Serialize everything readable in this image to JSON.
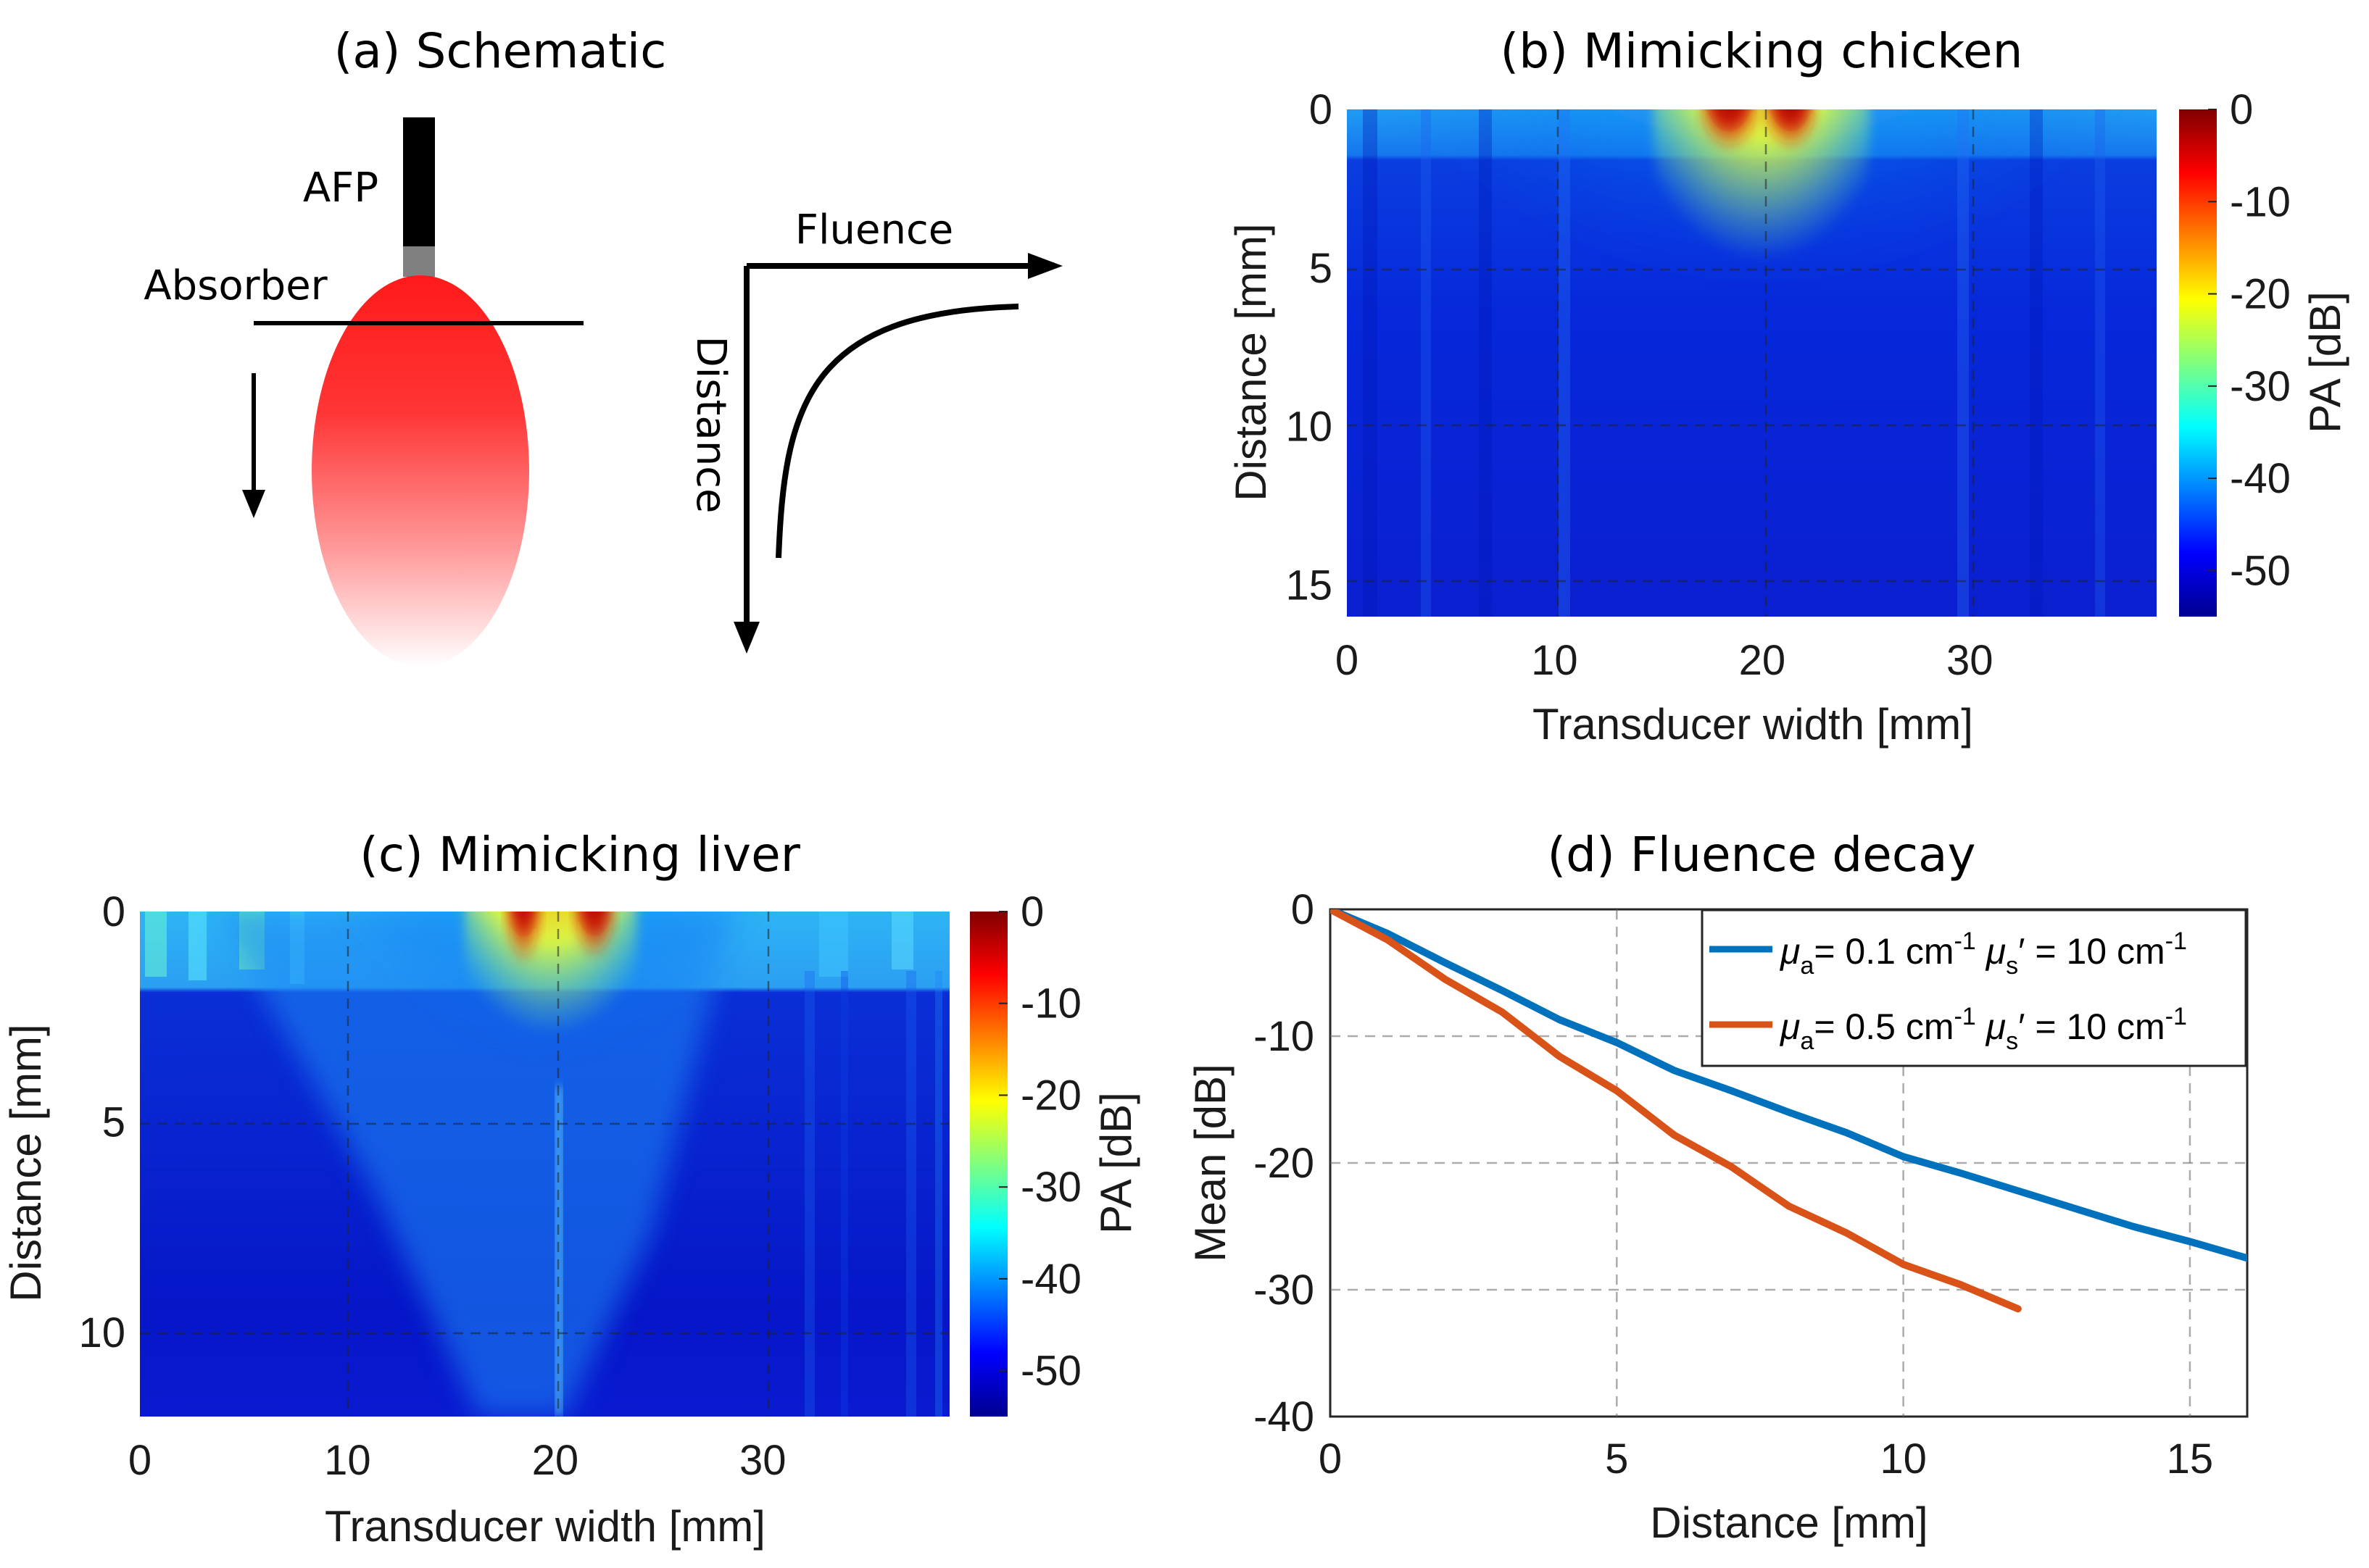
{
  "panels": {
    "a": {
      "title": "(a) Schematic",
      "afp": "AFP",
      "absorber": "Absorber",
      "fluence": "Fluence",
      "distance": "Distance"
    },
    "b": {
      "title": "(b) Mimicking chicken"
    },
    "c": {
      "title": "(c) Mimicking liver"
    },
    "d": {
      "title": "(d) Fluence decay"
    }
  },
  "colors": {
    "series1": "#0072BD",
    "series2": "#D95319",
    "absorber_red": "#ff2020",
    "black": "#000000"
  },
  "chart_data": [
    {
      "id": "b",
      "type": "heatmap",
      "title": "(b) Mimicking chicken",
      "xlabel": "Transducer width [mm]",
      "ylabel": "Distance [mm]",
      "xlim": [
        0,
        39
      ],
      "ylim": [
        0,
        16
      ],
      "xticks": [
        0,
        10,
        20,
        30
      ],
      "yticks": [
        0,
        5,
        10,
        15
      ],
      "colorbar": {
        "label": "PA [dB]",
        "min": -55,
        "max": 0,
        "ticks": [
          0,
          -10,
          -20,
          -30,
          -40,
          -50
        ]
      },
      "hotspot": {
        "x_mm": 19.5,
        "depth_mm": 0.8,
        "peak_db": 0
      }
    },
    {
      "id": "c",
      "type": "heatmap",
      "title": "(c) Mimicking liver",
      "xlabel": "Transducer width [mm]",
      "ylabel": "Distance [mm]",
      "xlim": [
        0,
        39
      ],
      "ylim": [
        0,
        12
      ],
      "xticks": [
        0,
        10,
        20,
        30
      ],
      "yticks": [
        0,
        5,
        10
      ],
      "colorbar": {
        "label": "PA [dB]",
        "min": -55,
        "max": 0,
        "ticks": [
          0,
          -10,
          -20,
          -30,
          -40,
          -50
        ]
      },
      "hotspot": {
        "x_mm": 20,
        "depth_mm": 0.8,
        "peak_db": 0
      }
    },
    {
      "id": "d",
      "type": "line",
      "title": "(d) Fluence decay",
      "xlabel": "Distance [mm]",
      "ylabel": "Mean [dB]",
      "xlim": [
        0,
        16
      ],
      "ylim": [
        -40,
        0
      ],
      "xticks": [
        0,
        5,
        10,
        15
      ],
      "yticks": [
        0,
        -10,
        -20,
        -30,
        -40
      ],
      "series": [
        {
          "name": "μa = 0.1 cm-1 μs' = 10 cm-1",
          "label_mu_a": "= 0.1 cm",
          "label_mu_s": "= 10 cm",
          "color": "#0072BD",
          "x": [
            0,
            1,
            2,
            3,
            4,
            5,
            6,
            7,
            8,
            9,
            10,
            11,
            12,
            13,
            14,
            15,
            16
          ],
          "y": [
            0,
            -1.9,
            -4.2,
            -6.4,
            -8.7,
            -10.5,
            -12.7,
            -14.3,
            -16.0,
            -17.6,
            -19.5,
            -20.8,
            -22.2,
            -23.6,
            -25.0,
            -26.2,
            -27.5
          ]
        },
        {
          "name": "μa = 0.5 cm-1 μs' = 10 cm-1",
          "label_mu_a": "= 0.5 cm",
          "label_mu_s": "= 10 cm",
          "color": "#D95319",
          "x": [
            0,
            1,
            2,
            3,
            4,
            5,
            6,
            7,
            8,
            9,
            10,
            11,
            12
          ],
          "y": [
            0,
            -2.4,
            -5.5,
            -8.1,
            -11.6,
            -14.3,
            -17.8,
            -20.3,
            -23.4,
            -25.5,
            -28.0,
            -29.6,
            -31.5
          ]
        }
      ],
      "legend_position": "top-right"
    }
  ]
}
